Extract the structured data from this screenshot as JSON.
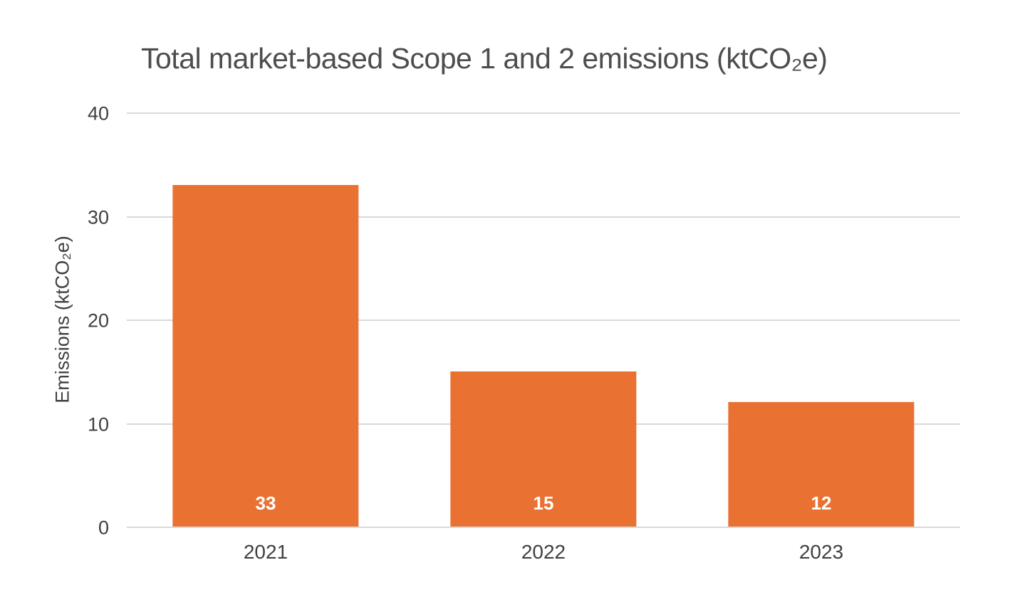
{
  "chart_data": {
    "type": "bar",
    "title": "Total market-based Scope 1 and 2 emissions (ktCO₂e)",
    "y_axis_title": "Emissions (ktCO₂e)",
    "categories": [
      "2021",
      "2022",
      "2023"
    ],
    "values": [
      33,
      15,
      12
    ],
    "data_labels": [
      "33",
      "15",
      "12"
    ],
    "ylim": [
      0,
      40
    ],
    "yticks": [
      0,
      10,
      20,
      30,
      40
    ],
    "grid": "horizontal",
    "legend": "none",
    "colors": {
      "bar": "#E97132",
      "gridline": "#D9D9D9",
      "title_text": "#4D4D4D",
      "axis_text": "#404040",
      "bar_label_text": "#FFFFFF",
      "background": "#FFFFFF"
    }
  }
}
